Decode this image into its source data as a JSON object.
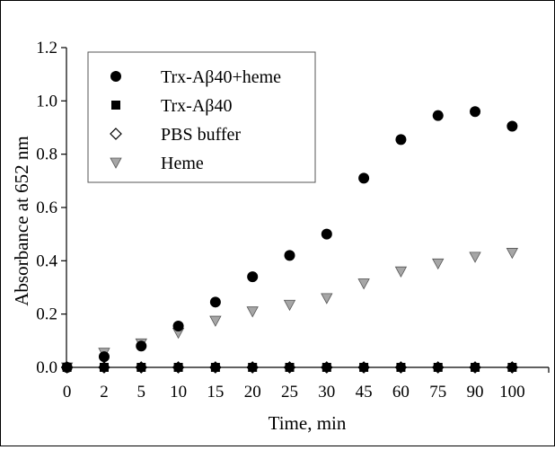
{
  "chart_data": {
    "type": "scatter",
    "title": "",
    "xlabel": "Time, min",
    "ylabel": "Absorbance at 652 nm",
    "x_axis_kind": "categorical",
    "categories": [
      "0",
      "2",
      "5",
      "10",
      "15",
      "20",
      "25",
      "30",
      "45",
      "60",
      "75",
      "90",
      "100"
    ],
    "yticks": [
      "0.0",
      "0.2",
      "0.4",
      "0.6",
      "0.8",
      "1.0",
      "1.2"
    ],
    "ylim": [
      0,
      1.2
    ],
    "grid": false,
    "legend_position": "top-left",
    "series": [
      {
        "name": "Trx-Aβ40+heme",
        "marker": "filled-circle",
        "color": "#000000",
        "values": [
          0.0,
          0.04,
          0.08,
          0.155,
          0.245,
          0.34,
          0.42,
          0.5,
          0.71,
          0.855,
          0.945,
          0.96,
          0.905
        ]
      },
      {
        "name": "Trx-Aβ40",
        "marker": "filled-square",
        "color": "#000000",
        "values": [
          0.0,
          0.0,
          0.0,
          0.0,
          0.0,
          0.0,
          0.0,
          0.0,
          0.0,
          0.0,
          0.0,
          0.0,
          0.0
        ]
      },
      {
        "name": "PBS buffer",
        "marker": "open-diamond",
        "color": "#000000",
        "values": [
          0.0,
          0.0,
          0.0,
          0.0,
          0.0,
          0.0,
          0.0,
          0.0,
          0.0,
          0.0,
          0.0,
          0.0,
          0.0
        ]
      },
      {
        "name": "Heme",
        "marker": "gray-down-triangle",
        "color": "#a6a6a6",
        "values": [
          0.0,
          0.055,
          0.09,
          0.13,
          0.175,
          0.21,
          0.235,
          0.26,
          0.315,
          0.36,
          0.39,
          0.415,
          0.43
        ]
      }
    ]
  }
}
